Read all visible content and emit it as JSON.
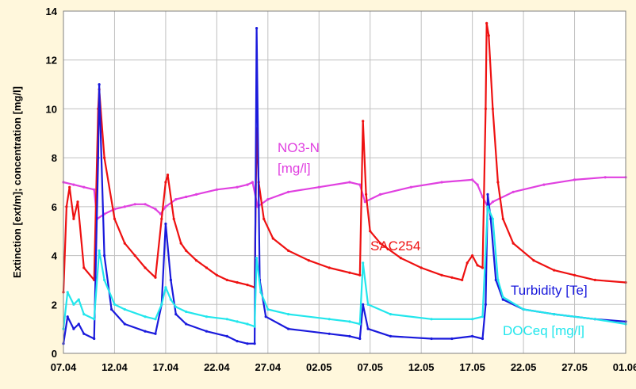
{
  "chart_data": {
    "type": "line",
    "title": "",
    "xlabel": "",
    "ylabel": "Extinction [ext/m]; concentration [mg/l]",
    "ylim": [
      0,
      14
    ],
    "y_ticks": [
      "0",
      "2",
      "4",
      "6",
      "8",
      "10",
      "12",
      "14"
    ],
    "x_ticks": [
      "07.04",
      "12.04",
      "17.04",
      "22.04",
      "27.04",
      "02.05",
      "07.05",
      "12.05",
      "17.05",
      "22.05",
      "27.05",
      "01.06"
    ],
    "grid": true,
    "colors": {
      "plot_bg": "#ffffff",
      "page_bg": "#fff7dc",
      "grid": "#c0c0c0",
      "nitrate": "#e040e0",
      "sac": "#ee1111",
      "turbidity": "#1a1adc",
      "doc": "#22e6ec"
    },
    "annotations": [
      {
        "lines": [
          "NO3-N",
          "[mg/l]"
        ],
        "series": "nitrate"
      },
      {
        "lines": [
          "SAC254"
        ],
        "series": "sac"
      },
      {
        "lines": [
          "Turbidity [Te]"
        ],
        "series": "turbidity"
      },
      {
        "lines": [
          "DOCeq [mg/l]"
        ],
        "series": "doc"
      }
    ],
    "series": [
      {
        "key": "nitrate",
        "points": [
          [
            0,
            7.0
          ],
          [
            1,
            6.9
          ],
          [
            2,
            6.8
          ],
          [
            3,
            6.7
          ],
          [
            3.3,
            5.5
          ],
          [
            4,
            5.7
          ],
          [
            5,
            5.9
          ],
          [
            6,
            6.0
          ],
          [
            7,
            6.1
          ],
          [
            8,
            6.1
          ],
          [
            9,
            5.9
          ],
          [
            9.5,
            5.7
          ],
          [
            10,
            6.0
          ],
          [
            11,
            6.3
          ],
          [
            12,
            6.4
          ],
          [
            13,
            6.5
          ],
          [
            15,
            6.7
          ],
          [
            17,
            6.8
          ],
          [
            18,
            6.9
          ],
          [
            18.5,
            7.0
          ],
          [
            19,
            6.0
          ],
          [
            20,
            6.3
          ],
          [
            22,
            6.6
          ],
          [
            25,
            6.8
          ],
          [
            28,
            7.0
          ],
          [
            29,
            6.9
          ],
          [
            29.5,
            6.2
          ],
          [
            31,
            6.5
          ],
          [
            34,
            6.8
          ],
          [
            37,
            7.0
          ],
          [
            40,
            7.1
          ],
          [
            40.5,
            6.9
          ],
          [
            41,
            6.4
          ],
          [
            41.5,
            6.0
          ],
          [
            42,
            6.2
          ],
          [
            44,
            6.6
          ],
          [
            47,
            6.9
          ],
          [
            50,
            7.1
          ],
          [
            53,
            7.2
          ],
          [
            55,
            7.2
          ]
        ]
      },
      {
        "key": "sac",
        "points": [
          [
            0,
            2.5
          ],
          [
            0.3,
            6.0
          ],
          [
            0.6,
            6.8
          ],
          [
            1,
            5.5
          ],
          [
            1.4,
            6.2
          ],
          [
            2,
            3.5
          ],
          [
            3,
            3.0
          ],
          [
            3.4,
            10.0
          ],
          [
            3.5,
            10.8
          ],
          [
            4,
            8.0
          ],
          [
            5,
            5.5
          ],
          [
            6,
            4.5
          ],
          [
            7,
            4.0
          ],
          [
            8,
            3.5
          ],
          [
            9,
            3.1
          ],
          [
            9.6,
            5.5
          ],
          [
            10,
            7.0
          ],
          [
            10.2,
            7.3
          ],
          [
            10.8,
            5.5
          ],
          [
            11.5,
            4.5
          ],
          [
            12,
            4.2
          ],
          [
            13,
            3.8
          ],
          [
            14,
            3.5
          ],
          [
            15,
            3.2
          ],
          [
            16,
            3.0
          ],
          [
            17,
            2.9
          ],
          [
            18,
            2.8
          ],
          [
            18.7,
            2.7
          ],
          [
            18.9,
            9.2
          ],
          [
            19.1,
            7.0
          ],
          [
            19.6,
            5.5
          ],
          [
            20.5,
            4.7
          ],
          [
            22,
            4.2
          ],
          [
            24,
            3.8
          ],
          [
            26,
            3.5
          ],
          [
            28,
            3.3
          ],
          [
            29,
            3.2
          ],
          [
            29.3,
            9.5
          ],
          [
            29.6,
            6.5
          ],
          [
            30,
            5.0
          ],
          [
            31,
            4.5
          ],
          [
            33,
            3.9
          ],
          [
            35,
            3.5
          ],
          [
            37,
            3.2
          ],
          [
            38,
            3.1
          ],
          [
            39,
            3.0
          ],
          [
            39.5,
            3.7
          ],
          [
            40,
            4.0
          ],
          [
            40.5,
            3.6
          ],
          [
            41,
            3.5
          ],
          [
            41.3,
            10.0
          ],
          [
            41.4,
            13.5
          ],
          [
            41.6,
            13.0
          ],
          [
            42,
            10.0
          ],
          [
            42.5,
            7.0
          ],
          [
            43,
            5.5
          ],
          [
            44,
            4.5
          ],
          [
            46,
            3.8
          ],
          [
            48,
            3.4
          ],
          [
            50,
            3.2
          ],
          [
            52,
            3.0
          ],
          [
            55,
            2.9
          ]
        ]
      },
      {
        "key": "turbidity",
        "points": [
          [
            0,
            0.4
          ],
          [
            0.4,
            1.5
          ],
          [
            1,
            1.0
          ],
          [
            1.5,
            1.2
          ],
          [
            2,
            0.8
          ],
          [
            3,
            0.6
          ],
          [
            3.4,
            8.0
          ],
          [
            3.5,
            11.0
          ],
          [
            4,
            4.0
          ],
          [
            4.7,
            1.8
          ],
          [
            6,
            1.2
          ],
          [
            8,
            0.9
          ],
          [
            9,
            0.8
          ],
          [
            9.6,
            2.0
          ],
          [
            10,
            5.3
          ],
          [
            10.5,
            3.0
          ],
          [
            11,
            1.6
          ],
          [
            12,
            1.2
          ],
          [
            14,
            0.9
          ],
          [
            16,
            0.7
          ],
          [
            17,
            0.5
          ],
          [
            18,
            0.4
          ],
          [
            18.7,
            0.4
          ],
          [
            18.9,
            13.3
          ],
          [
            19.2,
            3.0
          ],
          [
            19.8,
            1.5
          ],
          [
            22,
            1.0
          ],
          [
            26,
            0.8
          ],
          [
            28,
            0.7
          ],
          [
            29,
            0.6
          ],
          [
            29.3,
            2.0
          ],
          [
            29.8,
            1.0
          ],
          [
            32,
            0.7
          ],
          [
            36,
            0.6
          ],
          [
            38,
            0.6
          ],
          [
            40,
            0.7
          ],
          [
            41,
            0.6
          ],
          [
            41.3,
            2.0
          ],
          [
            41.5,
            6.5
          ],
          [
            41.8,
            5.5
          ],
          [
            42.3,
            3.0
          ],
          [
            43,
            2.2
          ],
          [
            45,
            1.8
          ],
          [
            48,
            1.6
          ],
          [
            52,
            1.4
          ],
          [
            55,
            1.3
          ]
        ]
      },
      {
        "key": "doc",
        "points": [
          [
            0,
            1.0
          ],
          [
            0.4,
            2.5
          ],
          [
            1,
            2.0
          ],
          [
            1.5,
            2.2
          ],
          [
            2,
            1.6
          ],
          [
            3,
            1.4
          ],
          [
            3.5,
            4.2
          ],
          [
            4,
            3.0
          ],
          [
            5,
            2.0
          ],
          [
            6,
            1.8
          ],
          [
            8,
            1.5
          ],
          [
            9,
            1.4
          ],
          [
            9.6,
            2.0
          ],
          [
            10,
            2.7
          ],
          [
            10.5,
            2.2
          ],
          [
            11,
            1.9
          ],
          [
            12,
            1.7
          ],
          [
            14,
            1.5
          ],
          [
            16,
            1.4
          ],
          [
            17,
            1.3
          ],
          [
            18,
            1.2
          ],
          [
            18.7,
            1.1
          ],
          [
            18.9,
            3.9
          ],
          [
            19.3,
            2.5
          ],
          [
            20,
            1.8
          ],
          [
            22,
            1.6
          ],
          [
            26,
            1.4
          ],
          [
            28,
            1.3
          ],
          [
            29,
            1.2
          ],
          [
            29.3,
            3.7
          ],
          [
            29.8,
            2.0
          ],
          [
            32,
            1.6
          ],
          [
            36,
            1.4
          ],
          [
            40,
            1.4
          ],
          [
            41,
            1.5
          ],
          [
            41.5,
            6.0
          ],
          [
            42,
            5.5
          ],
          [
            42.5,
            3.0
          ],
          [
            43,
            2.3
          ],
          [
            45,
            1.8
          ],
          [
            48,
            1.6
          ],
          [
            52,
            1.4
          ],
          [
            55,
            1.2
          ]
        ]
      }
    ]
  }
}
